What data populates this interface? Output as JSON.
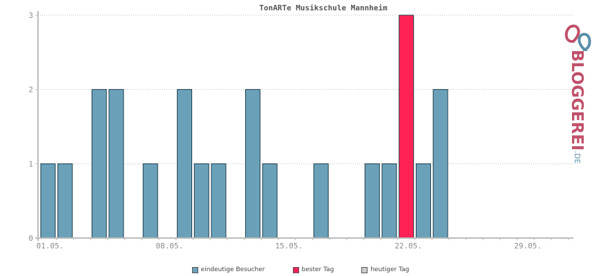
{
  "chart_data": {
    "type": "bar",
    "title": "TonARTe Musikschule Mannheim",
    "x_tick_labels": [
      "01.05.",
      "08.05.",
      "15.05.",
      "22.05.",
      "29.05."
    ],
    "ylim": [
      0,
      3
    ],
    "y_ticks": [
      "0",
      "1",
      "2",
      "3"
    ],
    "grid": true,
    "days": [
      1,
      2,
      3,
      4,
      5,
      6,
      7,
      8,
      9,
      10,
      11,
      12,
      13,
      14,
      15,
      16,
      17,
      18,
      19,
      20,
      21,
      22,
      23,
      24,
      25,
      26,
      27,
      28,
      29,
      30,
      31
    ],
    "values": [
      1,
      1,
      0,
      2,
      2,
      0,
      1,
      0,
      2,
      1,
      1,
      0,
      2,
      1,
      0,
      0,
      1,
      0,
      0,
      1,
      1,
      3,
      1,
      2,
      0,
      0,
      0,
      0,
      0,
      0,
      0
    ],
    "best_day_index": 21,
    "legend": [
      "eindeutige Besucher",
      "bester Tag",
      "heutiger Tag"
    ]
  },
  "colors": {
    "bar": "#6ba1b8",
    "best": "#ff2255",
    "today": "#cccccc",
    "axis": "#bbbbbb",
    "grid": "#bbbbbb"
  },
  "logo": {
    "main": "BLOGGEREI",
    "suffix": ".DE"
  }
}
